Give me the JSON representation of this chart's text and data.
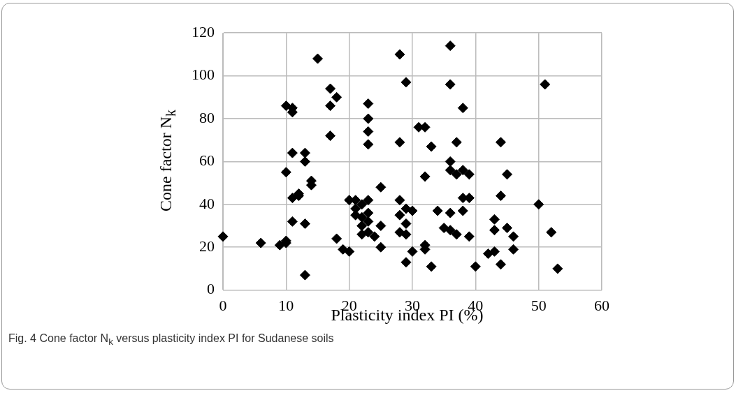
{
  "chart_data": {
    "type": "scatter",
    "xlabel": "Plasticity index PI   (%)",
    "ylabel": "Cone factor N$_{k}$",
    "annotations": [
      "Fig. 4  Cone factor N$_{k}$ versus plasticity index PI for Sudanese soils"
    ],
    "xlim": [
      0,
      60
    ],
    "xticks": [
      0,
      10,
      20,
      30,
      40,
      50,
      60
    ],
    "ylim": [
      0,
      120
    ],
    "yticks": [
      0,
      20,
      40,
      60,
      80,
      100,
      120
    ],
    "grid": true,
    "legend": false,
    "marker": "diamond",
    "series": [
      {
        "color": "#000000",
        "x": [
          0,
          6,
          9,
          10,
          10,
          10,
          10,
          11,
          11,
          11,
          11,
          11,
          12,
          12,
          13,
          13,
          13,
          13,
          14,
          14,
          15,
          17,
          17,
          17,
          18,
          18,
          19,
          20,
          20,
          21,
          21,
          21,
          22,
          22,
          22,
          22,
          23,
          23,
          23,
          23,
          23,
          23,
          23,
          23,
          24,
          25,
          25,
          25,
          28,
          28,
          28,
          28,
          28,
          29,
          29,
          29,
          29,
          29,
          30,
          30,
          31,
          32,
          32,
          32,
          32,
          33,
          33,
          34,
          35,
          36,
          36,
          36,
          36,
          36,
          36,
          37,
          37,
          37,
          38,
          38,
          38,
          38,
          39,
          39,
          39,
          40,
          42,
          43,
          43,
          43,
          44,
          44,
          44,
          45,
          45,
          46,
          46,
          50,
          51,
          52,
          53
        ],
        "values": [
          25,
          22,
          21,
          22,
          23,
          55,
          86,
          85,
          83,
          64,
          43,
          32,
          45,
          44,
          64,
          60,
          31,
          7,
          51,
          49,
          108,
          94,
          86,
          72,
          90,
          24,
          19,
          18,
          42,
          42,
          38,
          35,
          34,
          30,
          26,
          40,
          87,
          80,
          74,
          68,
          42,
          36,
          32,
          27,
          25,
          48,
          30,
          20,
          110,
          69,
          42,
          35,
          27,
          97,
          38,
          31,
          26,
          13,
          37,
          18,
          76,
          76,
          53,
          21,
          19,
          67,
          11,
          37,
          29,
          114,
          96,
          60,
          56,
          36,
          28,
          69,
          54,
          26,
          85,
          56,
          43,
          37,
          54,
          43,
          25,
          11,
          17,
          18,
          33,
          28,
          69,
          44,
          12,
          54,
          29,
          25,
          19,
          40,
          96,
          27,
          10
        ]
      }
    ]
  }
}
